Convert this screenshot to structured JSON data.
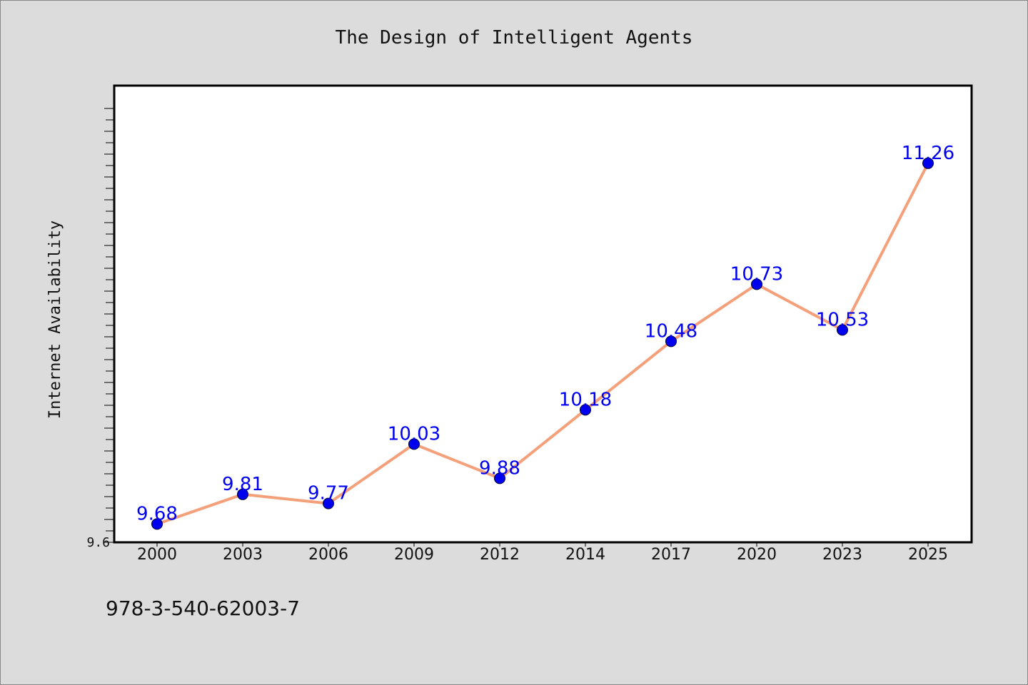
{
  "chart_data": {
    "type": "line",
    "title": "The Design of Intelligent Agents",
    "xlabel": "",
    "ylabel": "Internet Availability",
    "categories": [
      "2000",
      "2003",
      "2006",
      "2009",
      "2012",
      "2014",
      "2017",
      "2020",
      "2023",
      "2025"
    ],
    "series": [
      {
        "values": [
          9.68,
          9.81,
          9.77,
          10.03,
          9.88,
          10.18,
          10.48,
          10.73,
          10.53,
          11.26
        ]
      }
    ],
    "data_labels": [
      "9.68",
      "9.81",
      "9.77",
      "10.03",
      "9.88",
      "10.18",
      "10.48",
      "10.73",
      "10.53",
      "11.26"
    ],
    "ylim": [
      9.6,
      11.6
    ],
    "y_tick_labels": [
      "9.6"
    ],
    "grid": false,
    "line_color": "#f4a07a",
    "marker_color": "#0000ee",
    "label_color": "#0000ee",
    "plot_background": "#ffffff",
    "figure_background": "#dcdcdc"
  },
  "footer": {
    "isbn": "978-3-540-62003-7"
  }
}
